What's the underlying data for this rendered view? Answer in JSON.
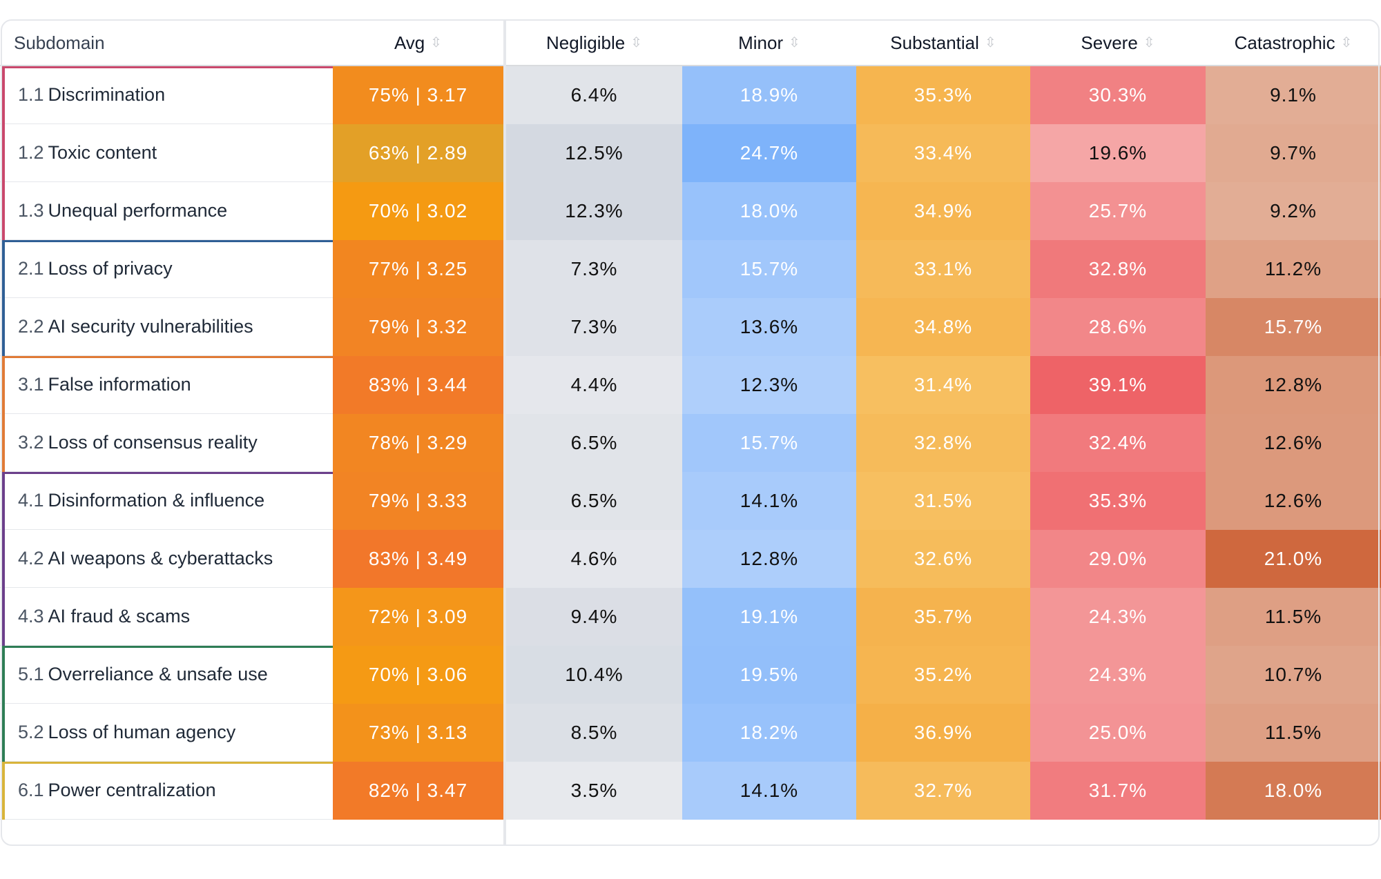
{
  "table": {
    "headers": {
      "subdomain": "Subdomain",
      "avg": "Avg",
      "negligible": "Negligible",
      "minor": "Minor",
      "substantial": "Substantial",
      "severe": "Severe",
      "catastrophic": "Catastrophic"
    },
    "groups": [
      {
        "id": "1",
        "color": "#c9486c"
      },
      {
        "id": "2",
        "color": "#2f5f95"
      },
      {
        "id": "3",
        "color": "#e07a36"
      },
      {
        "id": "4",
        "color": "#6b3f8a"
      },
      {
        "id": "5",
        "color": "#2e7d55"
      },
      {
        "id": "6",
        "color": "#d8b43a"
      }
    ],
    "rows": [
      {
        "num": "1.1",
        "name": "Discrimination",
        "group": 0,
        "avg": "75% | 3.17",
        "avg_color": "#f28c1e",
        "negligible": "6.4%",
        "minor": "18.9%",
        "substantial": "35.3%",
        "severe": "30.3%",
        "catastrophic": "9.1%"
      },
      {
        "num": "1.2",
        "name": "Toxic content",
        "group": 0,
        "avg": "63% | 2.89",
        "avg_color": "#e3a027",
        "negligible": "12.5%",
        "minor": "24.7%",
        "substantial": "33.4%",
        "severe": "19.6%",
        "catastrophic": "9.7%"
      },
      {
        "num": "1.3",
        "name": "Unequal performance",
        "group": 0,
        "avg": "70% | 3.02",
        "avg_color": "#f59a12",
        "negligible": "12.3%",
        "minor": "18.0%",
        "substantial": "34.9%",
        "severe": "25.7%",
        "catastrophic": "9.2%"
      },
      {
        "num": "2.1",
        "name": "Loss of privacy",
        "group": 1,
        "avg": "77% | 3.25",
        "avg_color": "#f28620",
        "negligible": "7.3%",
        "minor": "15.7%",
        "substantial": "33.1%",
        "severe": "32.8%",
        "catastrophic": "11.2%"
      },
      {
        "num": "2.2",
        "name": "AI security vulnerabilities",
        "group": 1,
        "avg": "79% | 3.32",
        "avg_color": "#f28424",
        "negligible": "7.3%",
        "minor": "13.6%",
        "substantial": "34.8%",
        "severe": "28.6%",
        "catastrophic": "15.7%"
      },
      {
        "num": "3.1",
        "name": "False information",
        "group": 2,
        "avg": "83% | 3.44",
        "avg_color": "#f27a28",
        "negligible": "4.4%",
        "minor": "12.3%",
        "substantial": "31.4%",
        "severe": "39.1%",
        "catastrophic": "12.8%"
      },
      {
        "num": "3.2",
        "name": "Loss of consensus reality",
        "group": 2,
        "avg": "78% | 3.29",
        "avg_color": "#f28622",
        "negligible": "6.5%",
        "minor": "15.7%",
        "substantial": "32.8%",
        "severe": "32.4%",
        "catastrophic": "12.6%"
      },
      {
        "num": "4.1",
        "name": "Disinformation & influence",
        "group": 3,
        "avg": "79% | 3.33",
        "avg_color": "#f28424",
        "negligible": "6.5%",
        "minor": "14.1%",
        "substantial": "31.5%",
        "severe": "35.3%",
        "catastrophic": "12.6%"
      },
      {
        "num": "4.2",
        "name": "AI weapons & cyberattacks",
        "group": 3,
        "avg": "83% | 3.49",
        "avg_color": "#f2772a",
        "negligible": "4.6%",
        "minor": "12.8%",
        "substantial": "32.6%",
        "severe": "29.0%",
        "catastrophic": "21.0%"
      },
      {
        "num": "4.3",
        "name": "AI fraud & scams",
        "group": 3,
        "avg": "72% | 3.09",
        "avg_color": "#f4961a",
        "negligible": "9.4%",
        "minor": "19.1%",
        "substantial": "35.7%",
        "severe": "24.3%",
        "catastrophic": "11.5%"
      },
      {
        "num": "5.1",
        "name": "Overreliance & unsafe use",
        "group": 4,
        "avg": "70% | 3.06",
        "avg_color": "#f59a14",
        "negligible": "10.4%",
        "minor": "19.5%",
        "substantial": "35.2%",
        "severe": "24.3%",
        "catastrophic": "10.7%"
      },
      {
        "num": "5.2",
        "name": "Loss of human agency",
        "group": 4,
        "avg": "73% | 3.13",
        "avg_color": "#f3921b",
        "negligible": "8.5%",
        "minor": "18.2%",
        "substantial": "36.9%",
        "severe": "25.0%",
        "catastrophic": "11.5%"
      },
      {
        "num": "6.1",
        "name": "Power centralization",
        "group": 5,
        "avg": "82% | 3.47",
        "avg_color": "#f27a28",
        "negligible": "3.5%",
        "minor": "14.1%",
        "substantial": "32.7%",
        "severe": "31.7%",
        "catastrophic": "18.0%"
      }
    ]
  }
}
